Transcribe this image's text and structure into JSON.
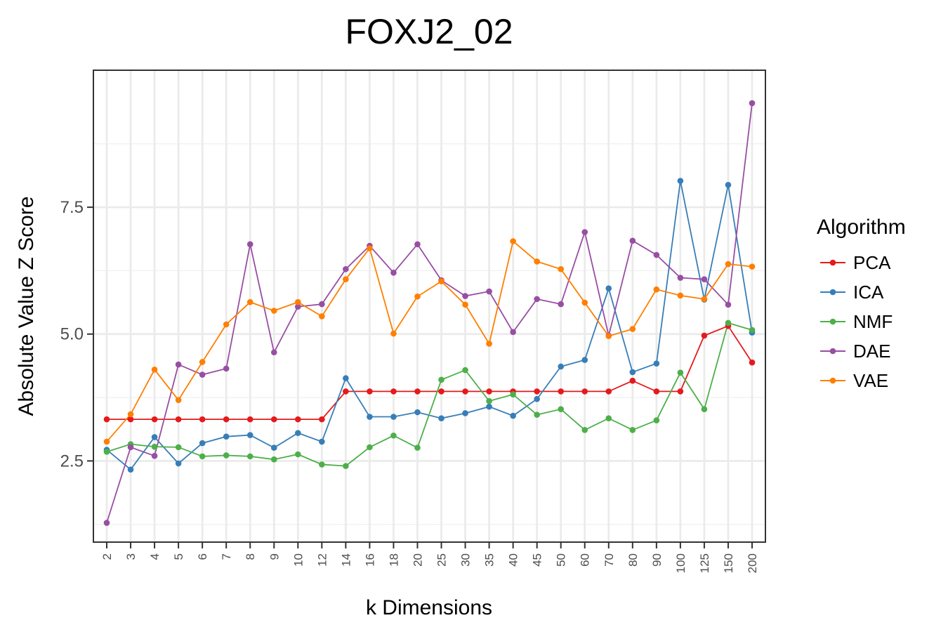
{
  "chart_data": {
    "type": "line",
    "title": "FOXJ2_02",
    "xlabel": "k Dimensions",
    "ylabel": "Absolute Value Z Score",
    "categories": [
      "2",
      "3",
      "4",
      "5",
      "6",
      "7",
      "8",
      "9",
      "10",
      "12",
      "14",
      "16",
      "18",
      "20",
      "25",
      "30",
      "35",
      "40",
      "45",
      "50",
      "60",
      "70",
      "80",
      "90",
      "100",
      "125",
      "150",
      "200"
    ],
    "ylim": [
      0.9,
      10.2
    ],
    "yticks": [
      2.5,
      5.0,
      7.5
    ],
    "ytick_labels": [
      "2.5",
      "5.0",
      "7.5"
    ],
    "grid": true,
    "legend": {
      "title": "Algorithm",
      "position": "right"
    },
    "series": [
      {
        "name": "PCA",
        "color": "#e41a1c",
        "values": [
          3.32,
          3.32,
          3.32,
          3.32,
          3.32,
          3.32,
          3.32,
          3.32,
          3.32,
          3.32,
          3.87,
          3.87,
          3.87,
          3.87,
          3.87,
          3.87,
          3.87,
          3.87,
          3.87,
          3.87,
          3.87,
          3.87,
          4.08,
          3.87,
          3.87,
          4.97,
          5.16,
          4.44
        ]
      },
      {
        "name": "ICA",
        "color": "#377eb8",
        "values": [
          2.72,
          2.33,
          2.97,
          2.45,
          2.85,
          2.98,
          3.01,
          2.76,
          3.05,
          2.88,
          4.13,
          3.37,
          3.37,
          3.46,
          3.34,
          3.44,
          3.57,
          3.39,
          3.72,
          4.36,
          4.49,
          5.9,
          4.25,
          4.42,
          8.02,
          5.68,
          7.94,
          5.03
        ]
      },
      {
        "name": "NMF",
        "color": "#4daf4a",
        "values": [
          2.68,
          2.83,
          2.78,
          2.77,
          2.59,
          2.61,
          2.59,
          2.53,
          2.63,
          2.43,
          2.4,
          2.77,
          3.0,
          2.76,
          4.1,
          4.29,
          3.68,
          3.81,
          3.41,
          3.52,
          3.11,
          3.34,
          3.11,
          3.3,
          4.24,
          3.52,
          5.22,
          5.08
        ]
      },
      {
        "name": "DAE",
        "color": "#984ea3",
        "values": [
          1.28,
          2.77,
          2.6,
          4.4,
          4.2,
          4.32,
          6.77,
          4.64,
          5.54,
          5.59,
          6.28,
          6.74,
          6.21,
          6.77,
          6.06,
          5.75,
          5.84,
          5.04,
          5.69,
          5.59,
          7.01,
          4.97,
          6.84,
          6.56,
          6.11,
          6.08,
          5.58,
          9.55
        ]
      },
      {
        "name": "VAE",
        "color": "#ff7f00",
        "values": [
          2.88,
          3.42,
          4.3,
          3.7,
          4.45,
          5.19,
          5.63,
          5.46,
          5.63,
          5.35,
          6.08,
          6.69,
          5.01,
          5.74,
          6.04,
          5.58,
          4.81,
          6.83,
          6.43,
          6.28,
          5.62,
          4.96,
          5.1,
          5.88,
          5.76,
          5.69,
          6.38,
          6.33
        ]
      }
    ]
  }
}
